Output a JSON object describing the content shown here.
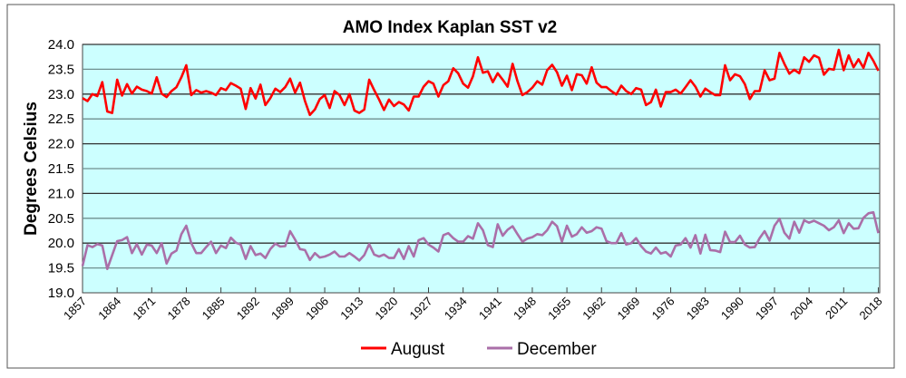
{
  "chart_data": {
    "type": "line",
    "title": "AMO Index Kaplan SST v2",
    "xlabel": "",
    "ylabel": "Degrees Celsius",
    "ylim": [
      19.0,
      24.0
    ],
    "yticks": [
      "19.0",
      "19.5",
      "20.0",
      "20.5",
      "21.0",
      "21.5",
      "22.0",
      "22.5",
      "23.0",
      "23.5",
      "24.0"
    ],
    "x_start": 1857,
    "x_end": 2018,
    "xticks": [
      "1857",
      "1864",
      "1871",
      "1878",
      "1885",
      "1892",
      "1899",
      "1906",
      "1913",
      "1920",
      "1927",
      "1934",
      "1941",
      "1948",
      "1955",
      "1962",
      "1969",
      "1976",
      "1983",
      "1990",
      "1997",
      "2004",
      "2011",
      "2018"
    ],
    "grid": true,
    "legend_position": "bottom",
    "colors": {
      "plot_bg": "#ccffff",
      "august": "#ff0000",
      "december": "#aa6fa8"
    },
    "series": [
      {
        "name": "August",
        "values": [
          22.92,
          22.86,
          23.0,
          22.96,
          23.24,
          22.65,
          22.62,
          23.29,
          22.97,
          23.2,
          23.01,
          23.15,
          23.09,
          23.06,
          23.01,
          23.34,
          23.01,
          22.94,
          23.06,
          23.14,
          23.34,
          23.58,
          22.98,
          23.08,
          23.03,
          23.06,
          23.03,
          22.98,
          23.12,
          23.08,
          23.22,
          23.17,
          23.11,
          22.7,
          23.12,
          22.91,
          23.19,
          22.78,
          22.92,
          23.11,
          23.04,
          23.14,
          23.31,
          23.03,
          23.23,
          22.86,
          22.58,
          22.69,
          22.9,
          22.98,
          22.72,
          23.06,
          22.98,
          22.78,
          23.0,
          22.67,
          22.62,
          22.69,
          23.29,
          23.08,
          22.89,
          22.68,
          22.89,
          22.76,
          22.84,
          22.79,
          22.67,
          22.95,
          22.95,
          23.15,
          23.26,
          23.21,
          22.95,
          23.18,
          23.26,
          23.52,
          23.42,
          23.21,
          23.13,
          23.36,
          23.74,
          23.43,
          23.46,
          23.24,
          23.42,
          23.29,
          23.15,
          23.61,
          23.26,
          22.98,
          23.04,
          23.13,
          23.26,
          23.19,
          23.48,
          23.59,
          23.44,
          23.17,
          23.37,
          23.08,
          23.4,
          23.38,
          23.21,
          23.54,
          23.23,
          23.14,
          23.14,
          23.06,
          22.99,
          23.17,
          23.06,
          23.0,
          23.12,
          23.09,
          22.78,
          22.84,
          23.09,
          22.75,
          23.04,
          23.04,
          23.09,
          23.01,
          23.14,
          23.28,
          23.15,
          22.95,
          23.11,
          23.04,
          22.98,
          22.98,
          23.58,
          23.28,
          23.4,
          23.36,
          23.2,
          22.9,
          23.06,
          23.06,
          23.48,
          23.28,
          23.31,
          23.83,
          23.61,
          23.41,
          23.49,
          23.42,
          23.74,
          23.65,
          23.78,
          23.73,
          23.39,
          23.51,
          23.49,
          23.89,
          23.48,
          23.78,
          23.54,
          23.7,
          23.53,
          23.83,
          23.67,
          23.47
        ]
      },
      {
        "name": "December",
        "values": [
          19.54,
          19.96,
          19.92,
          19.98,
          19.95,
          19.48,
          19.76,
          20.04,
          20.06,
          20.12,
          19.8,
          19.98,
          19.77,
          19.97,
          19.95,
          19.8,
          20.0,
          19.59,
          19.79,
          19.85,
          20.18,
          20.35,
          20.0,
          19.8,
          19.8,
          19.92,
          20.03,
          19.8,
          19.95,
          19.9,
          20.11,
          20.01,
          19.97,
          19.68,
          19.94,
          19.76,
          19.79,
          19.7,
          19.88,
          19.99,
          19.93,
          19.94,
          20.24,
          20.07,
          19.88,
          19.86,
          19.66,
          19.8,
          19.71,
          19.73,
          19.77,
          19.83,
          19.73,
          19.73,
          19.8,
          19.73,
          19.65,
          19.76,
          19.98,
          19.77,
          19.73,
          19.77,
          19.7,
          19.7,
          19.88,
          19.68,
          19.94,
          19.73,
          20.06,
          20.1,
          19.97,
          19.91,
          19.83,
          20.16,
          20.2,
          20.1,
          20.03,
          20.03,
          20.14,
          20.09,
          20.4,
          20.26,
          19.96,
          19.92,
          20.38,
          20.15,
          20.27,
          20.34,
          20.18,
          20.03,
          20.09,
          20.12,
          20.18,
          20.16,
          20.26,
          20.43,
          20.34,
          20.03,
          20.35,
          20.13,
          20.18,
          20.32,
          20.21,
          20.24,
          20.32,
          20.29,
          20.04,
          20.0,
          20.0,
          20.2,
          19.97,
          20.0,
          20.1,
          19.94,
          19.83,
          19.79,
          19.91,
          19.79,
          19.82,
          19.73,
          19.95,
          19.97,
          20.1,
          19.91,
          20.16,
          19.79,
          20.17,
          19.86,
          19.85,
          19.82,
          20.23,
          20.02,
          20.02,
          20.15,
          19.97,
          19.91,
          19.92,
          20.1,
          20.24,
          20.05,
          20.35,
          20.49,
          20.21,
          20.09,
          20.43,
          20.21,
          20.46,
          20.41,
          20.45,
          20.4,
          20.35,
          20.26,
          20.32,
          20.46,
          20.2,
          20.4,
          20.29,
          20.3,
          20.51,
          20.6,
          20.62,
          20.2
        ]
      }
    ]
  }
}
